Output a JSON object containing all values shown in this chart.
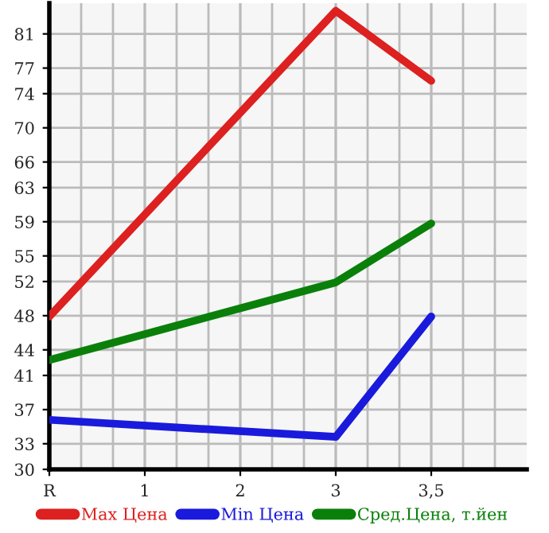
{
  "chart_data": {
    "type": "line",
    "categories": [
      "R",
      "1",
      "2",
      "3",
      "3,5"
    ],
    "ylim": [
      30,
      84.6
    ],
    "yticks": [
      30,
      33,
      37,
      41,
      44,
      48,
      52,
      55,
      59,
      63,
      66,
      70,
      74,
      77,
      81
    ],
    "grid": true,
    "legend": "bottom",
    "marker": "none",
    "line_style": "solid",
    "series": [
      {
        "name": "Max Цена",
        "color": "#dd2020",
        "values": [
          47.9,
          null,
          null,
          83.7,
          75.5
        ]
      },
      {
        "name": "Min Цена",
        "color": "#1a1adc",
        "values": [
          35.8,
          null,
          null,
          33.8,
          47.9
        ]
      },
      {
        "name": "Сред.Цена, т.йен",
        "color": "#0a800a",
        "values": [
          42.8,
          null,
          null,
          51.9,
          58.8
        ]
      }
    ]
  }
}
